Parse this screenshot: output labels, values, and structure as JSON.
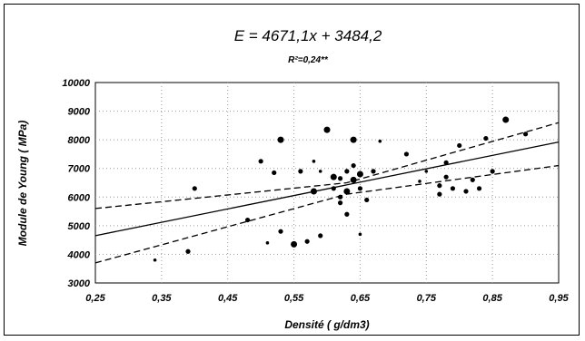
{
  "chart_data": {
    "type": "scatter",
    "title": "E = 4671,1x + 3484,2",
    "subtitle": "R²=0,24**",
    "xlabel": "Densité ( g/dm3)",
    "ylabel": "Module de Young ( MPa)",
    "xlim": [
      0.25,
      0.95
    ],
    "ylim": [
      3000,
      10000
    ],
    "x_ticks": [
      "0,25",
      "0,35",
      "0,45",
      "0,55",
      "0,65",
      "0,75",
      "0,85",
      "0,95"
    ],
    "y_ticks": [
      "3000",
      "4000",
      "5000",
      "6000",
      "7000",
      "8000",
      "9000",
      "10000"
    ],
    "grid": "dotted",
    "regression": {
      "slope": 4671.1,
      "intercept": 3484.2
    },
    "confidence_band": {
      "upper": [
        [
          0.25,
          5600
        ],
        [
          0.63,
          6500
        ],
        [
          0.95,
          8600
        ]
      ],
      "lower": [
        [
          0.25,
          3700
        ],
        [
          0.63,
          6100
        ],
        [
          0.95,
          7100
        ]
      ]
    },
    "points": [
      {
        "x": 0.34,
        "y": 3800,
        "size": "s"
      },
      {
        "x": 0.39,
        "y": 4100,
        "size": "m"
      },
      {
        "x": 0.4,
        "y": 6300,
        "size": "m"
      },
      {
        "x": 0.48,
        "y": 5200,
        "size": "m"
      },
      {
        "x": 0.5,
        "y": 7250,
        "size": "m"
      },
      {
        "x": 0.51,
        "y": 4400,
        "size": "s"
      },
      {
        "x": 0.52,
        "y": 6850,
        "size": "m"
      },
      {
        "x": 0.53,
        "y": 8000,
        "size": "l"
      },
      {
        "x": 0.53,
        "y": 4800,
        "size": "m"
      },
      {
        "x": 0.55,
        "y": 4350,
        "size": "l"
      },
      {
        "x": 0.56,
        "y": 6900,
        "size": "m"
      },
      {
        "x": 0.57,
        "y": 4450,
        "size": "m"
      },
      {
        "x": 0.58,
        "y": 7250,
        "size": "s"
      },
      {
        "x": 0.58,
        "y": 6200,
        "size": "l"
      },
      {
        "x": 0.59,
        "y": 4650,
        "size": "m"
      },
      {
        "x": 0.59,
        "y": 6900,
        "size": "s"
      },
      {
        "x": 0.6,
        "y": 8350,
        "size": "l"
      },
      {
        "x": 0.61,
        "y": 6300,
        "size": "m"
      },
      {
        "x": 0.61,
        "y": 6700,
        "size": "l"
      },
      {
        "x": 0.62,
        "y": 6650,
        "size": "m"
      },
      {
        "x": 0.62,
        "y": 6000,
        "size": "m"
      },
      {
        "x": 0.62,
        "y": 5800,
        "size": "m"
      },
      {
        "x": 0.63,
        "y": 6200,
        "size": "l"
      },
      {
        "x": 0.63,
        "y": 6900,
        "size": "m"
      },
      {
        "x": 0.63,
        "y": 5400,
        "size": "m"
      },
      {
        "x": 0.64,
        "y": 8000,
        "size": "l"
      },
      {
        "x": 0.64,
        "y": 6600,
        "size": "l"
      },
      {
        "x": 0.64,
        "y": 7100,
        "size": "m"
      },
      {
        "x": 0.65,
        "y": 6800,
        "size": "l"
      },
      {
        "x": 0.65,
        "y": 4700,
        "size": "s"
      },
      {
        "x": 0.65,
        "y": 6300,
        "size": "m"
      },
      {
        "x": 0.66,
        "y": 5900,
        "size": "m"
      },
      {
        "x": 0.67,
        "y": 6900,
        "size": "m"
      },
      {
        "x": 0.68,
        "y": 7950,
        "size": "s"
      },
      {
        "x": 0.72,
        "y": 7500,
        "size": "m"
      },
      {
        "x": 0.74,
        "y": 6550,
        "size": "s"
      },
      {
        "x": 0.75,
        "y": 6900,
        "size": "s"
      },
      {
        "x": 0.77,
        "y": 6400,
        "size": "m"
      },
      {
        "x": 0.77,
        "y": 6100,
        "size": "m"
      },
      {
        "x": 0.78,
        "y": 7200,
        "size": "m"
      },
      {
        "x": 0.78,
        "y": 6700,
        "size": "m"
      },
      {
        "x": 0.79,
        "y": 6300,
        "size": "m"
      },
      {
        "x": 0.8,
        "y": 7800,
        "size": "m"
      },
      {
        "x": 0.81,
        "y": 6200,
        "size": "m"
      },
      {
        "x": 0.82,
        "y": 6600,
        "size": "m"
      },
      {
        "x": 0.83,
        "y": 6300,
        "size": "m"
      },
      {
        "x": 0.84,
        "y": 8050,
        "size": "m"
      },
      {
        "x": 0.85,
        "y": 6900,
        "size": "m"
      },
      {
        "x": 0.87,
        "y": 8700,
        "size": "l"
      },
      {
        "x": 0.9,
        "y": 8200,
        "size": "m"
      }
    ]
  }
}
